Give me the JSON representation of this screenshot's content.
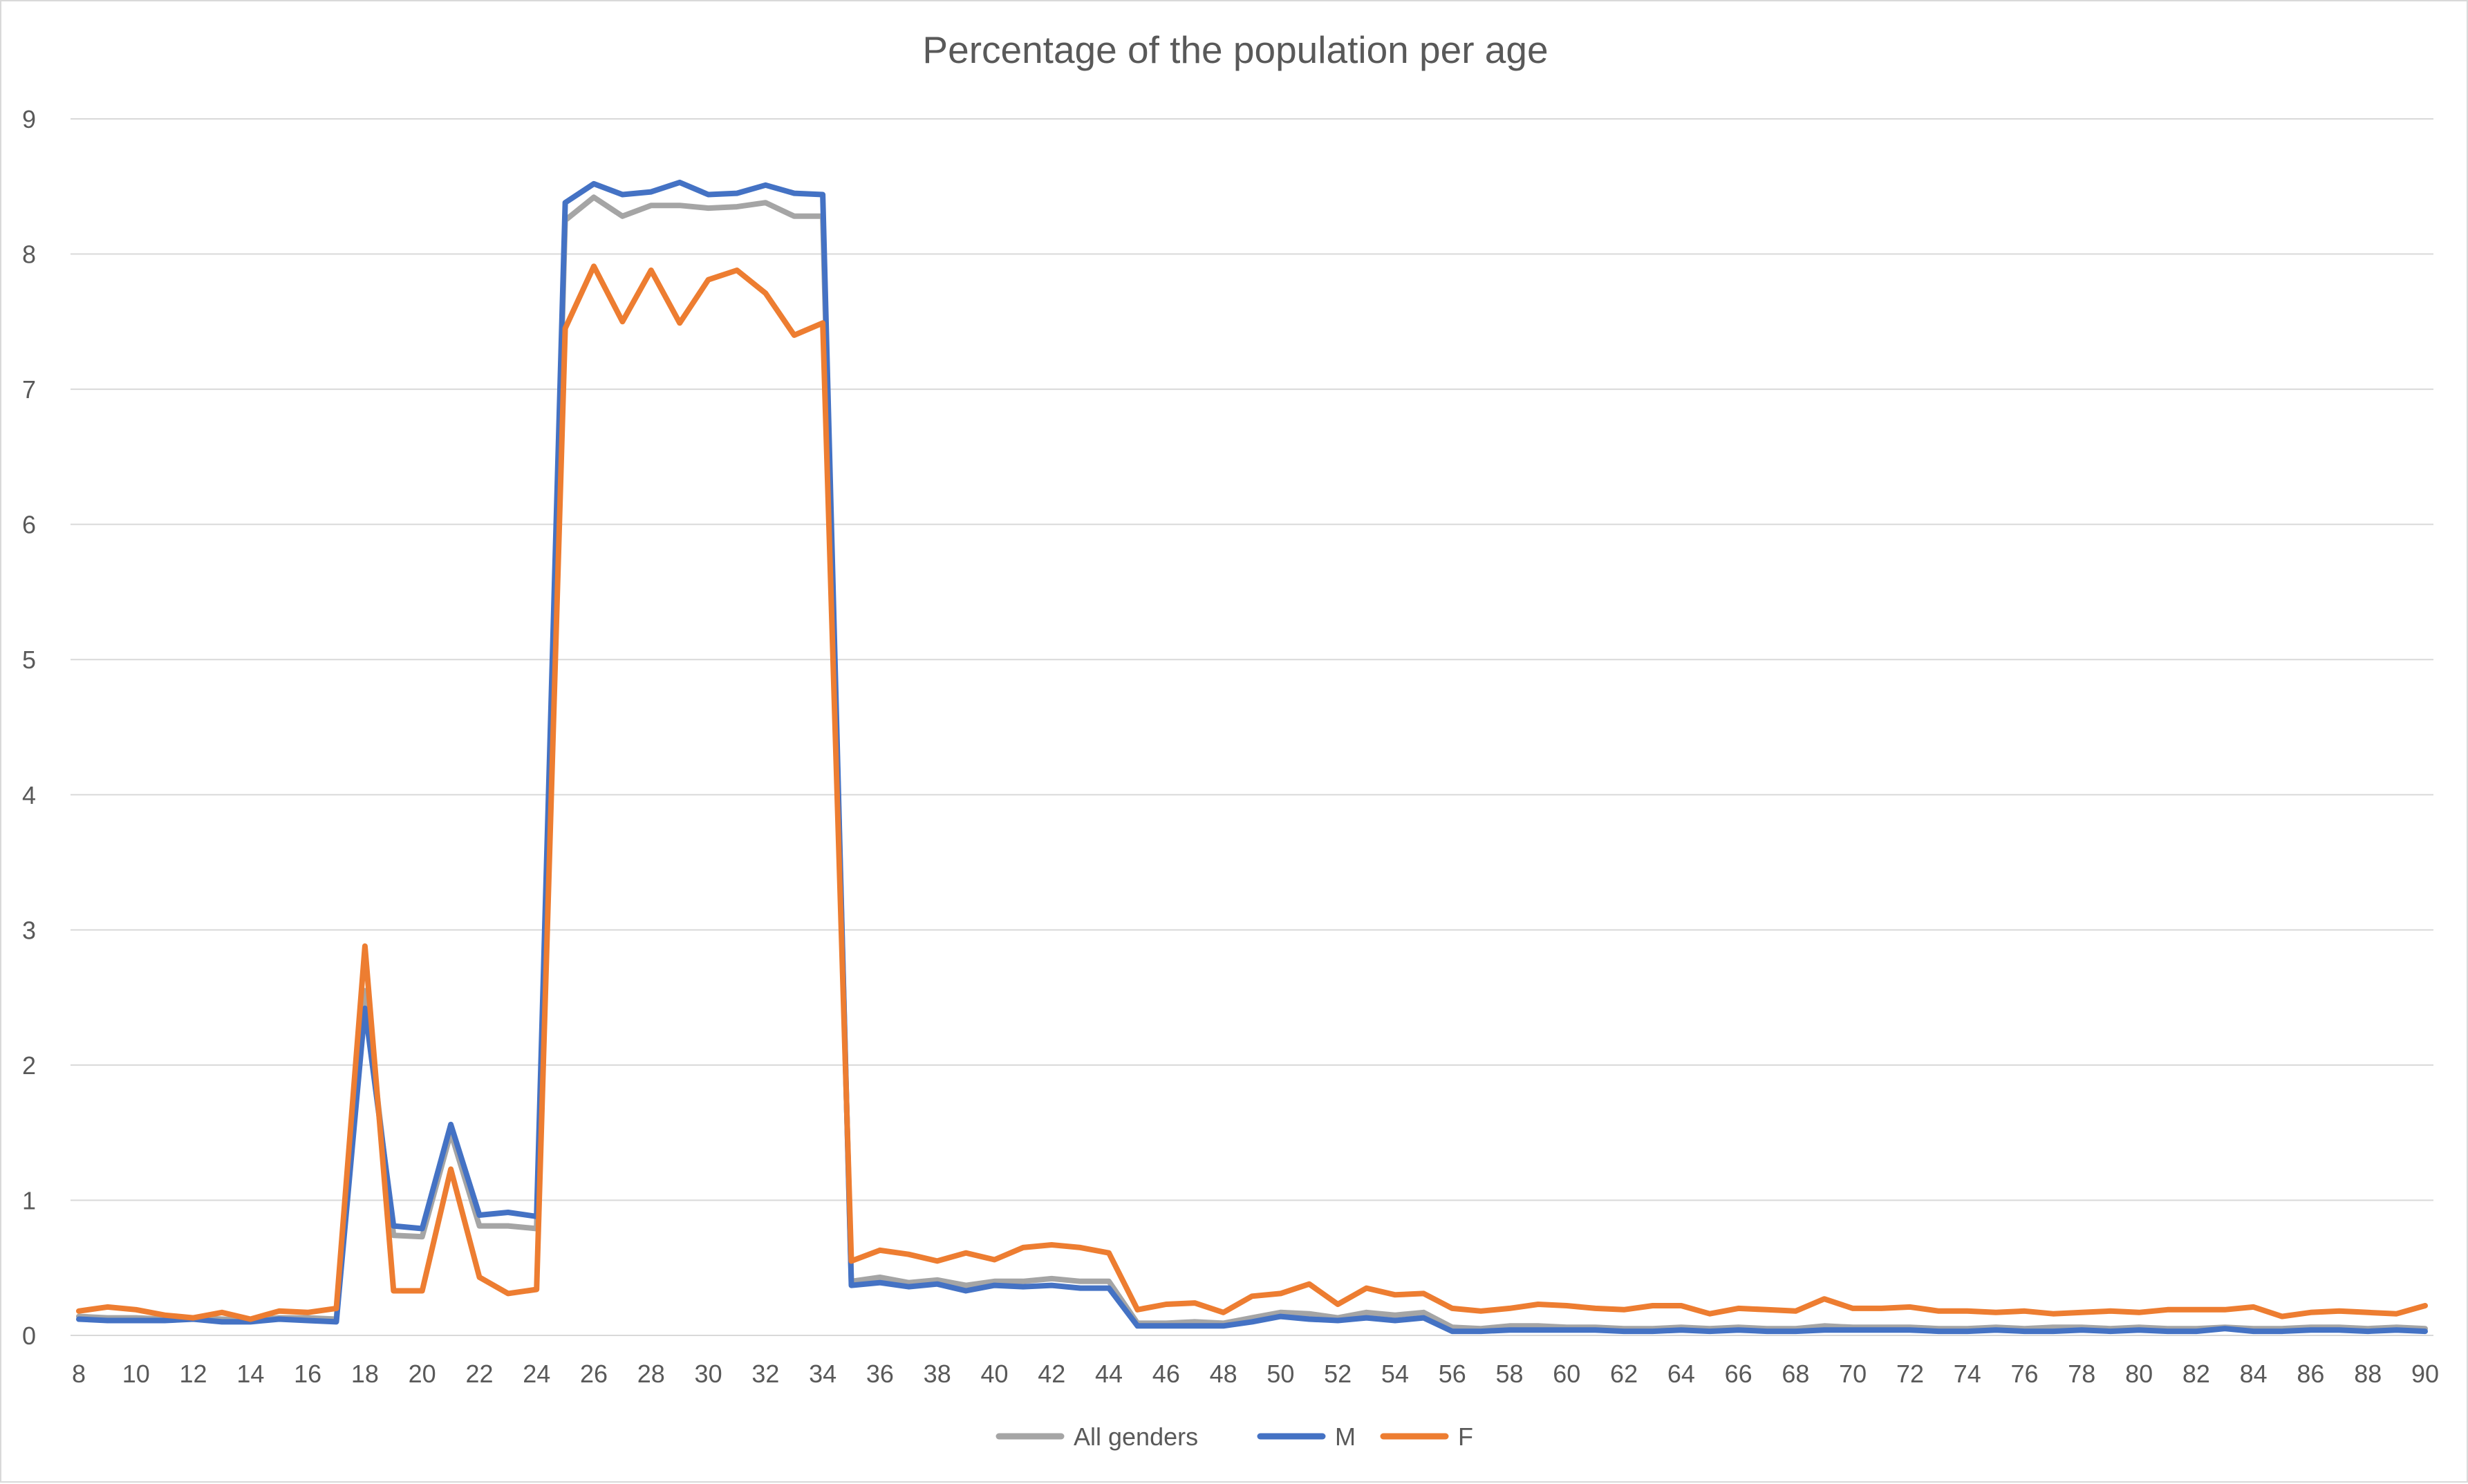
{
  "chart_data": {
    "type": "line",
    "title": "Percentage of the population per age",
    "xlabel": "",
    "ylabel": "",
    "ylim": [
      0,
      9
    ],
    "yticks": [
      0,
      1,
      2,
      3,
      4,
      5,
      6,
      7,
      8,
      9
    ],
    "xlim": [
      8,
      90
    ],
    "xticks": [
      8,
      10,
      12,
      14,
      16,
      18,
      20,
      22,
      24,
      26,
      28,
      30,
      32,
      34,
      36,
      38,
      40,
      42,
      44,
      46,
      48,
      50,
      52,
      54,
      56,
      58,
      60,
      62,
      64,
      66,
      68,
      70,
      72,
      74,
      76,
      78,
      80,
      82,
      84,
      86,
      88,
      90
    ],
    "grid": "horizontal",
    "legend_position": "bottom",
    "x": [
      8,
      9,
      10,
      11,
      12,
      13,
      14,
      15,
      16,
      17,
      18,
      19,
      20,
      21,
      22,
      23,
      24,
      25,
      26,
      27,
      28,
      29,
      30,
      31,
      32,
      33,
      34,
      35,
      36,
      37,
      38,
      39,
      40,
      41,
      42,
      43,
      44,
      45,
      46,
      47,
      48,
      49,
      50,
      51,
      52,
      53,
      54,
      55,
      56,
      57,
      58,
      59,
      60,
      61,
      62,
      63,
      64,
      65,
      66,
      67,
      68,
      69,
      70,
      71,
      72,
      73,
      74,
      75,
      76,
      77,
      78,
      79,
      80,
      81,
      82,
      83,
      84,
      85,
      86,
      87,
      88,
      89,
      90
    ],
    "series": [
      {
        "name": "All genders",
        "color": "#a5a5a5",
        "values": [
          0.14,
          0.13,
          0.13,
          0.12,
          0.13,
          0.12,
          0.11,
          0.13,
          0.13,
          0.12,
          2.55,
          0.74,
          0.73,
          1.5,
          0.81,
          0.81,
          0.79,
          8.25,
          8.42,
          8.28,
          8.36,
          8.36,
          8.34,
          8.35,
          8.38,
          8.28,
          8.28,
          0.4,
          0.43,
          0.39,
          0.41,
          0.37,
          0.4,
          0.4,
          0.42,
          0.4,
          0.4,
          0.09,
          0.09,
          0.1,
          0.09,
          0.13,
          0.17,
          0.16,
          0.13,
          0.17,
          0.15,
          0.17,
          0.06,
          0.05,
          0.07,
          0.07,
          0.06,
          0.06,
          0.05,
          0.05,
          0.06,
          0.05,
          0.06,
          0.05,
          0.05,
          0.07,
          0.06,
          0.06,
          0.06,
          0.05,
          0.05,
          0.06,
          0.05,
          0.06,
          0.06,
          0.05,
          0.06,
          0.05,
          0.05,
          0.06,
          0.05,
          0.05,
          0.06,
          0.06,
          0.05,
          0.06,
          0.05
        ]
      },
      {
        "name": "M",
        "color": "#4472c4",
        "values": [
          0.12,
          0.11,
          0.11,
          0.11,
          0.12,
          0.1,
          0.1,
          0.12,
          0.11,
          0.1,
          2.42,
          0.81,
          0.79,
          1.56,
          0.89,
          0.91,
          0.88,
          8.38,
          8.52,
          8.44,
          8.46,
          8.53,
          8.44,
          8.45,
          8.51,
          8.45,
          8.44,
          0.37,
          0.39,
          0.36,
          0.38,
          0.33,
          0.37,
          0.36,
          0.37,
          0.35,
          0.35,
          0.07,
          0.07,
          0.07,
          0.07,
          0.1,
          0.14,
          0.12,
          0.11,
          0.13,
          0.11,
          0.13,
          0.03,
          0.03,
          0.04,
          0.04,
          0.04,
          0.04,
          0.03,
          0.03,
          0.04,
          0.03,
          0.04,
          0.03,
          0.03,
          0.04,
          0.04,
          0.04,
          0.04,
          0.03,
          0.03,
          0.04,
          0.03,
          0.03,
          0.04,
          0.03,
          0.04,
          0.03,
          0.03,
          0.05,
          0.03,
          0.03,
          0.04,
          0.04,
          0.03,
          0.04,
          0.03
        ]
      },
      {
        "name": "F",
        "color": "#ed7d31",
        "values": [
          0.18,
          0.21,
          0.19,
          0.15,
          0.13,
          0.17,
          0.12,
          0.18,
          0.17,
          0.2,
          2.88,
          0.33,
          0.33,
          1.23,
          0.43,
          0.31,
          0.34,
          7.45,
          7.91,
          7.5,
          7.88,
          7.49,
          7.81,
          7.88,
          7.71,
          7.4,
          7.49,
          0.55,
          0.63,
          0.6,
          0.55,
          0.61,
          0.56,
          0.65,
          0.67,
          0.65,
          0.61,
          0.19,
          0.23,
          0.24,
          0.17,
          0.29,
          0.31,
          0.38,
          0.23,
          0.35,
          0.3,
          0.31,
          0.2,
          0.18,
          0.2,
          0.23,
          0.22,
          0.2,
          0.19,
          0.22,
          0.22,
          0.16,
          0.2,
          0.19,
          0.18,
          0.27,
          0.2,
          0.2,
          0.21,
          0.18,
          0.18,
          0.17,
          0.18,
          0.16,
          0.17,
          0.18,
          0.17,
          0.19,
          0.19,
          0.19,
          0.21,
          0.14,
          0.17,
          0.18,
          0.17,
          0.16,
          0.22
        ]
      }
    ]
  }
}
